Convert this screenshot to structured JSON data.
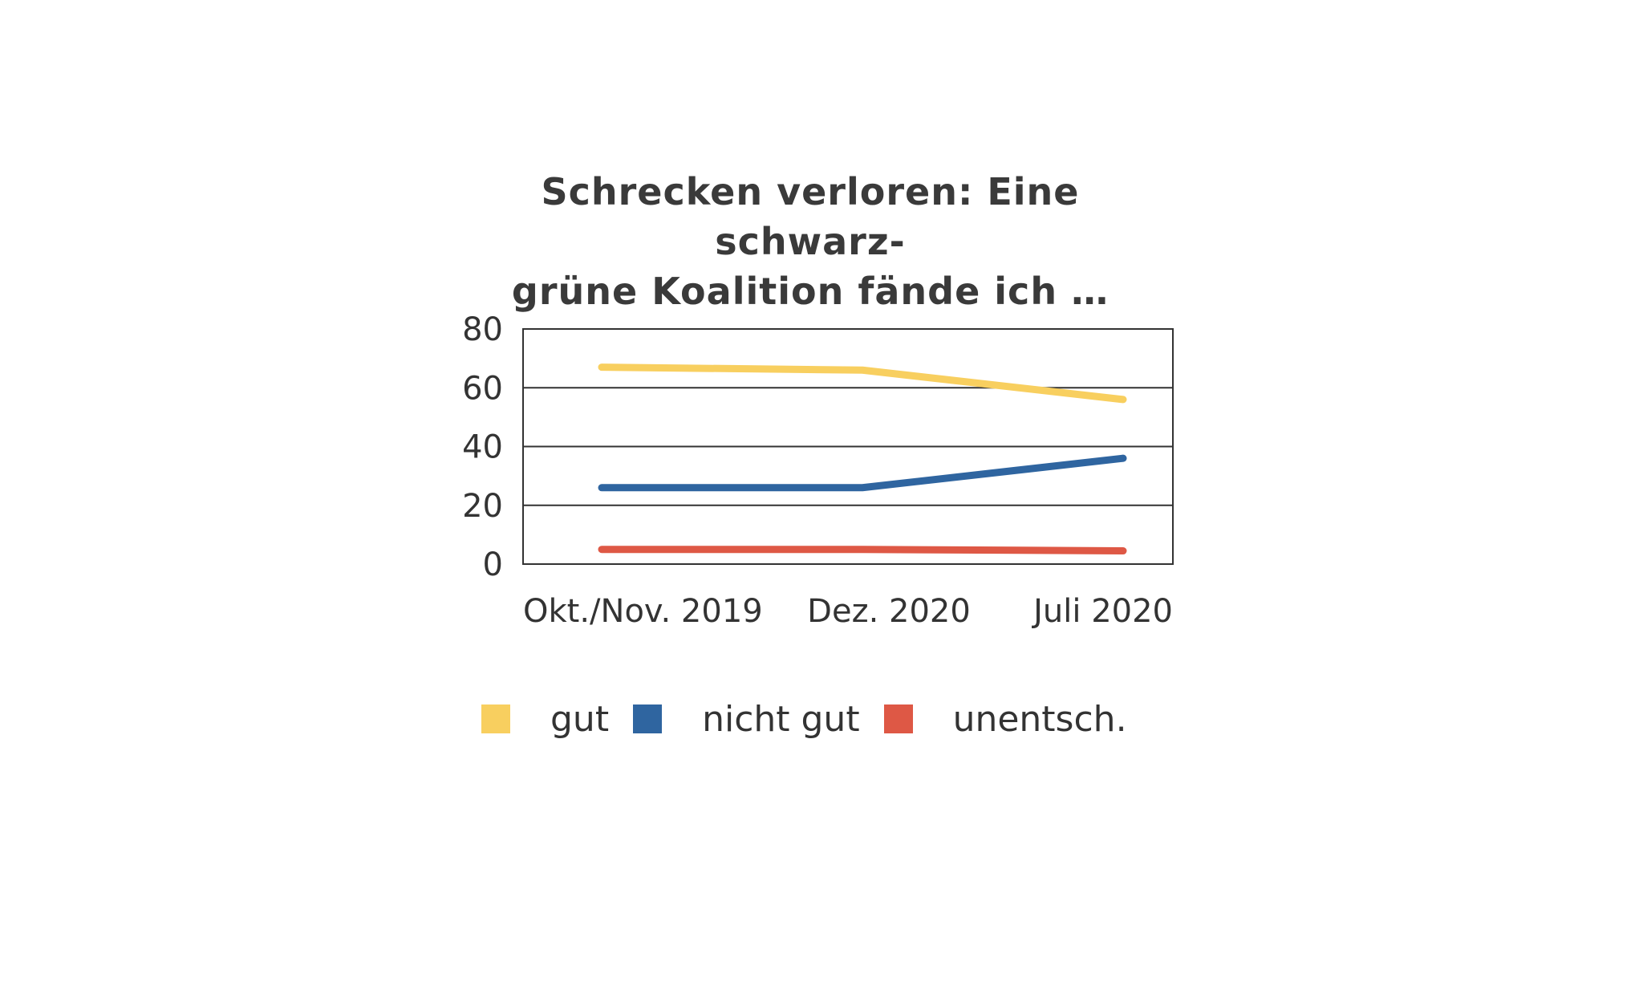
{
  "chart_data": {
    "type": "line",
    "title_lines": [
      "Schrecken verloren: Eine schwarz-",
      "grüne Koalition fände ich …"
    ],
    "categories": [
      "Okt./Nov. 2019",
      "Dez. 2020",
      "Juli 2020"
    ],
    "ylim": [
      0,
      80
    ],
    "yticks": [
      "0",
      "20",
      "40",
      "60",
      "80"
    ],
    "grid": true,
    "legend_position": "bottom",
    "series": [
      {
        "name": "gut",
        "values": [
          67,
          66,
          56
        ],
        "color": "#f8cf5f"
      },
      {
        "name": "nicht gut",
        "values": [
          26,
          26,
          36
        ],
        "color": "#2f65a0"
      },
      {
        "name": "unentsch.",
        "values": [
          5,
          5,
          4.5
        ],
        "color": "#de5845"
      }
    ]
  }
}
